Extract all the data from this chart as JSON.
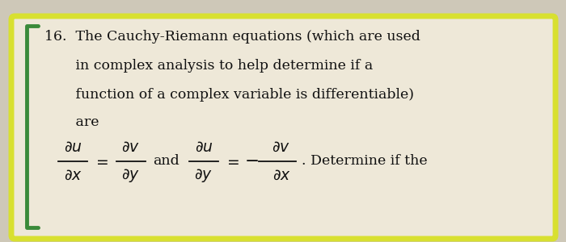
{
  "background_color": "#cec8b8",
  "box_bg_color": "#eee8d8",
  "highlight_color": "#d8e030",
  "bracket_color": "#3a8a3a",
  "text_color": "#111111",
  "line1": "16.  The Cauchy-Riemann equations (which are used",
  "line2": "       in complex analysis to help determine if a",
  "line3": "       function of a complex variable is differentiable)",
  "line4": "       are",
  "fig_width": 7.0,
  "fig_height": 3.0,
  "dpi": 100,
  "font_size_main": 12.5,
  "font_size_eq": 13.5
}
